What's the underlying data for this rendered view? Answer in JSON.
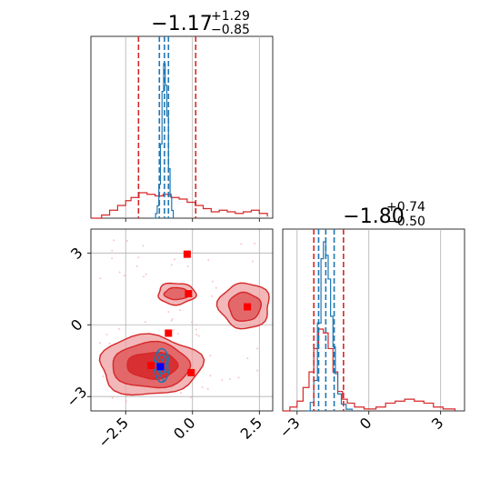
{
  "chart_data": {
    "type": "corner",
    "colors": {
      "samples_a": "#d62728",
      "samples_b": "#1f77b4",
      "marker_true": "#ff0000",
      "marker_b": "#0000ff",
      "grid": "#b0b0b0"
    },
    "grid": true,
    "panels": [
      {
        "id": "p1",
        "type": "histogram",
        "title": {
          "main": "−1.17",
          "sup": "+1.29",
          "sub": "−0.85"
        },
        "xlim": [
          -3.8,
          3.0
        ],
        "x_gridlines": [
          -2.5,
          0.0,
          2.5
        ],
        "series": [
          {
            "name": "",
            "color": "#d62728",
            "steps": [
              [
                -3.8,
                0.0
              ],
              [
                -3.4,
                0.02
              ],
              [
                -3.1,
                0.05
              ],
              [
                -2.8,
                0.08
              ],
              [
                -2.5,
                0.11
              ],
              [
                -2.3,
                0.13
              ],
              [
                -2.0,
                0.16
              ],
              [
                -1.7,
                0.15
              ],
              [
                -1.4,
                0.14
              ],
              [
                -1.1,
                0.15
              ],
              [
                -0.8,
                0.13
              ],
              [
                -0.5,
                0.12
              ],
              [
                -0.2,
                0.1
              ],
              [
                0.1,
                0.08
              ],
              [
                0.4,
                0.06
              ],
              [
                0.7,
                0.04
              ],
              [
                1.0,
                0.05
              ],
              [
                1.3,
                0.04
              ],
              [
                1.6,
                0.03
              ],
              [
                1.9,
                0.04
              ],
              [
                2.2,
                0.05
              ],
              [
                2.5,
                0.03
              ],
              [
                2.8,
                0.01
              ]
            ],
            "quantiles": [
              -2.02,
              0.12
            ]
          },
          {
            "name": "",
            "color": "#1f77b4",
            "steps": [
              [
                -1.45,
                0.0
              ],
              [
                -1.38,
                0.03
              ],
              [
                -1.32,
                0.08
              ],
              [
                -1.26,
                0.22
              ],
              [
                -1.2,
                0.48
              ],
              [
                -1.14,
                0.82
              ],
              [
                -1.08,
                1.0
              ],
              [
                -1.02,
                0.86
              ],
              [
                -0.96,
                0.66
              ],
              [
                -0.9,
                0.32
              ],
              [
                -0.84,
                0.14
              ],
              [
                -0.78,
                0.05
              ],
              [
                -0.72,
                0.0
              ]
            ],
            "quantiles": [
              -1.24,
              -1.05,
              -0.9
            ]
          }
        ]
      },
      {
        "id": "p2",
        "type": "scatter-contour",
        "xlim": [
          -3.8,
          3.0
        ],
        "ylim": [
          -3.6,
          4.0
        ],
        "xticks": [
          "−2.5",
          "0.0",
          "2.5"
        ],
        "xtick_values": [
          -2.5,
          0.0,
          2.5
        ],
        "yticks": [
          "3",
          "0",
          "−3"
        ],
        "ytick_values": [
          3,
          0,
          -3
        ],
        "contours_a": [
          {
            "cx": -1.6,
            "cy": -1.7,
            "rx": 1.9,
            "ry": 1.25,
            "level": 0
          },
          {
            "cx": -1.55,
            "cy": -1.7,
            "rx": 1.45,
            "ry": 0.95,
            "level": 1
          },
          {
            "cx": -1.5,
            "cy": -1.7,
            "rx": 0.95,
            "ry": 0.55,
            "level": 2
          },
          {
            "cx": -0.6,
            "cy": 1.3,
            "rx": 0.7,
            "ry": 0.45,
            "level": 0
          },
          {
            "cx": -0.6,
            "cy": 1.3,
            "rx": 0.45,
            "ry": 0.25,
            "level": 1
          },
          {
            "cx": 1.95,
            "cy": 0.8,
            "rx": 0.95,
            "ry": 0.95,
            "level": 0
          },
          {
            "cx": 1.95,
            "cy": 0.75,
            "rx": 0.6,
            "ry": 0.6,
            "level": 1
          }
        ],
        "contours_b": [
          {
            "cx": -1.15,
            "cy": -1.7,
            "rx": 0.28,
            "ry": 0.7
          },
          {
            "cx": -1.15,
            "cy": -1.65,
            "rx": 0.17,
            "ry": 0.4
          }
        ],
        "markers_true": [
          {
            "x": -0.2,
            "y": 2.95
          },
          {
            "x": -0.15,
            "y": 1.3
          },
          {
            "x": 2.05,
            "y": 0.75
          },
          {
            "x": -0.9,
            "y": -0.35
          },
          {
            "x": -1.55,
            "y": -1.7
          },
          {
            "x": -0.05,
            "y": -2.0
          }
        ],
        "markers_b": [
          {
            "x": -1.2,
            "y": -1.75
          }
        ]
      },
      {
        "id": "p3",
        "type": "histogram",
        "title": {
          "main": "−1.80",
          "sup": "+0.74",
          "sub": "−0.50"
        },
        "xlim": [
          -3.6,
          4.0
        ],
        "xticks": [
          "−3",
          "0",
          "3"
        ],
        "xtick_values": [
          -3,
          0,
          3
        ],
        "series": [
          {
            "name": "",
            "color": "#d62728",
            "steps": [
              [
                -3.6,
                0.0
              ],
              [
                -3.3,
                0.02
              ],
              [
                -3.0,
                0.05
              ],
              [
                -2.75,
                0.12
              ],
              [
                -2.5,
                0.2
              ],
              [
                -2.3,
                0.32
              ],
              [
                -2.1,
                0.42
              ],
              [
                -1.9,
                0.4
              ],
              [
                -1.7,
                0.32
              ],
              [
                -1.5,
                0.2
              ],
              [
                -1.3,
                0.1
              ],
              [
                -1.1,
                0.06
              ],
              [
                -0.9,
                0.04
              ],
              [
                -0.6,
                0.02
              ],
              [
                -0.2,
                0.01
              ],
              [
                0.3,
                0.02
              ],
              [
                0.7,
                0.04
              ],
              [
                1.1,
                0.05
              ],
              [
                1.5,
                0.06
              ],
              [
                1.9,
                0.05
              ],
              [
                2.3,
                0.04
              ],
              [
                2.7,
                0.02
              ],
              [
                3.1,
                0.01
              ],
              [
                3.6,
                0.0
              ]
            ],
            "quantiles": [
              -2.3,
              -1.06
            ]
          },
          {
            "name": "",
            "color": "#1f77b4",
            "steps": [
              [
                -2.6,
                0.0
              ],
              [
                -2.45,
                0.05
              ],
              [
                -2.3,
                0.18
              ],
              [
                -2.15,
                0.52
              ],
              [
                -2.0,
                0.9
              ],
              [
                -1.9,
                1.0
              ],
              [
                -1.8,
                0.92
              ],
              [
                -1.7,
                0.78
              ],
              [
                -1.6,
                0.56
              ],
              [
                -1.5,
                0.38
              ],
              [
                -1.4,
                0.22
              ],
              [
                -1.3,
                0.1
              ],
              [
                -1.15,
                0.04
              ],
              [
                -0.95,
                0.01
              ],
              [
                -0.7,
                0.0
              ]
            ],
            "quantiles": [
              -2.1,
              -1.8,
              -1.45
            ]
          }
        ]
      }
    ]
  }
}
